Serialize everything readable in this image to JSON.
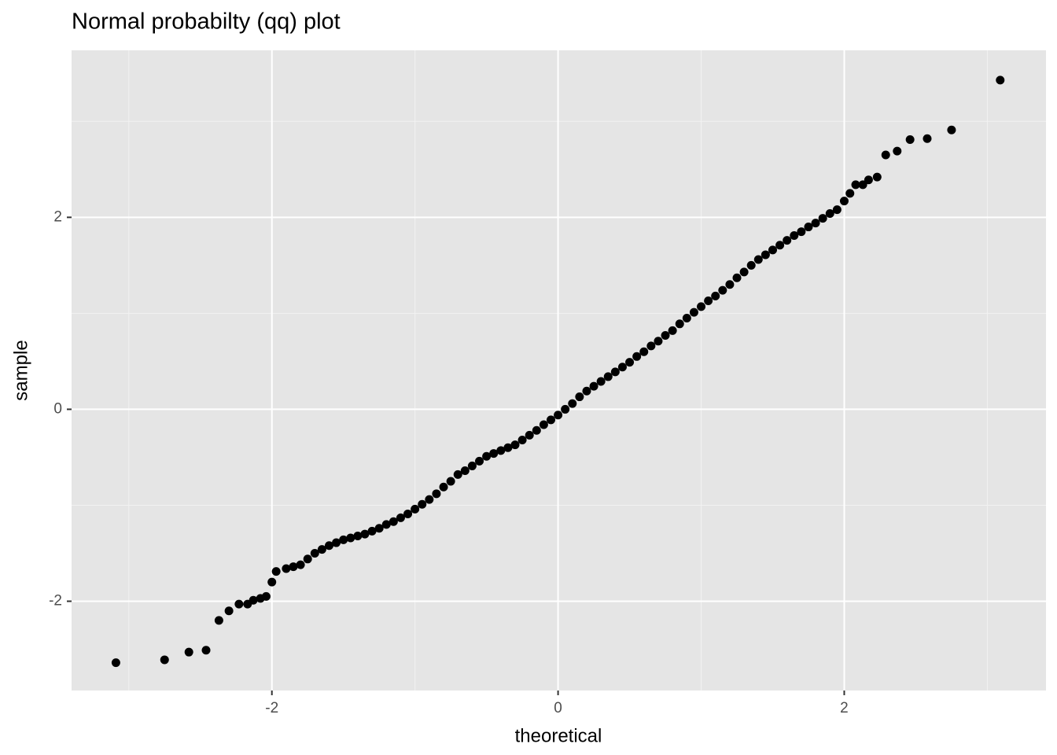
{
  "chart_data": {
    "type": "scatter",
    "title": "Normal probabilty (qq) plot",
    "x_label": "theoretical",
    "y_label": "sample",
    "xlim": [
      -3.4,
      3.41
    ],
    "ylim": [
      -2.93,
      3.74
    ],
    "xticks": [
      -2,
      0,
      2
    ],
    "yticks": [
      -2,
      0,
      2
    ],
    "xminor": [
      -3,
      -1,
      1,
      3
    ],
    "yminor": [
      -1,
      1,
      3
    ],
    "grid": true,
    "color": "#000000",
    "x": [
      -3.09,
      -2.75,
      -2.58,
      -2.46,
      -2.37,
      -2.3,
      -2.23,
      -2.17,
      -2.13,
      -2.08,
      -2.04,
      -2.0,
      -1.97,
      -1.9,
      -1.85,
      -1.8,
      -1.75,
      -1.7,
      -1.65,
      -1.6,
      -1.55,
      -1.5,
      -1.45,
      -1.4,
      -1.35,
      -1.3,
      -1.25,
      -1.2,
      -1.15,
      -1.1,
      -1.05,
      -1.0,
      -0.95,
      -0.9,
      -0.85,
      -0.8,
      -0.75,
      -0.7,
      -0.65,
      -0.6,
      -0.55,
      -0.5,
      -0.45,
      -0.4,
      -0.35,
      -0.3,
      -0.25,
      -0.2,
      -0.15,
      -0.1,
      -0.05,
      0.0,
      0.05,
      0.1,
      0.15,
      0.2,
      0.25,
      0.3,
      0.35,
      0.4,
      0.45,
      0.5,
      0.55,
      0.6,
      0.65,
      0.7,
      0.75,
      0.8,
      0.85,
      0.9,
      0.95,
      1.0,
      1.05,
      1.1,
      1.15,
      1.2,
      1.25,
      1.3,
      1.35,
      1.4,
      1.45,
      1.5,
      1.55,
      1.6,
      1.65,
      1.7,
      1.75,
      1.8,
      1.85,
      1.9,
      1.95,
      2.0,
      2.04,
      2.08,
      2.13,
      2.17,
      2.23,
      2.29,
      2.37,
      2.46,
      2.58,
      2.75,
      3.09
    ],
    "values": [
      -2.64,
      -2.61,
      -2.53,
      -2.51,
      -2.2,
      -2.1,
      -2.03,
      -2.03,
      -1.99,
      -1.97,
      -1.95,
      -1.8,
      -1.69,
      -1.66,
      -1.64,
      -1.62,
      -1.56,
      -1.5,
      -1.46,
      -1.42,
      -1.39,
      -1.36,
      -1.34,
      -1.32,
      -1.3,
      -1.27,
      -1.24,
      -1.2,
      -1.17,
      -1.13,
      -1.09,
      -1.04,
      -0.99,
      -0.94,
      -0.88,
      -0.81,
      -0.75,
      -0.68,
      -0.64,
      -0.59,
      -0.54,
      -0.49,
      -0.46,
      -0.43,
      -0.4,
      -0.37,
      -0.32,
      -0.27,
      -0.22,
      -0.16,
      -0.11,
      -0.06,
      0.0,
      0.06,
      0.13,
      0.19,
      0.24,
      0.29,
      0.34,
      0.39,
      0.44,
      0.49,
      0.55,
      0.6,
      0.66,
      0.71,
      0.77,
      0.82,
      0.89,
      0.95,
      1.01,
      1.07,
      1.13,
      1.18,
      1.24,
      1.3,
      1.37,
      1.43,
      1.5,
      1.56,
      1.61,
      1.66,
      1.71,
      1.76,
      1.81,
      1.85,
      1.9,
      1.94,
      1.99,
      2.04,
      2.08,
      2.17,
      2.25,
      2.34,
      2.34,
      2.39,
      2.42,
      2.65,
      2.69,
      2.81,
      2.82,
      2.91,
      3.43
    ]
  }
}
